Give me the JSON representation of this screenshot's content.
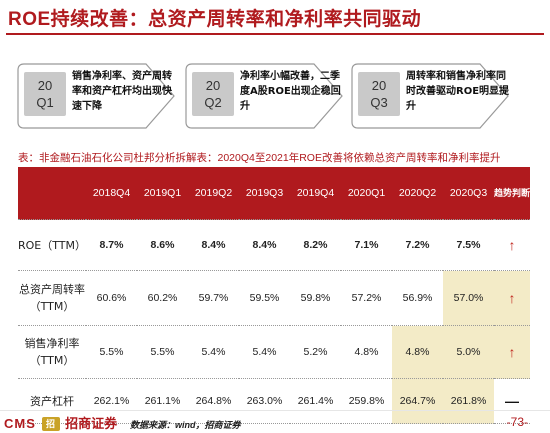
{
  "title": "ROE持续改善：总资产周转率和净利率共同驱动",
  "steps": [
    {
      "period": "20",
      "quarter": "Q1",
      "text": "销售净利率、资产周转率和资产杠杆均出现快速下降"
    },
    {
      "period": "20",
      "quarter": "Q2",
      "text": "净利率小幅改善，二季度A股ROE出现企稳回升"
    },
    {
      "period": "20",
      "quarter": "Q3",
      "text": "周转率和销售净利率同时改善驱动ROE明显提升"
    }
  ],
  "caption": "表：非金融石油石化公司杜邦分析拆解表：2020Q4至2021年ROE改善将依赖总资产周转率和净利率提升",
  "table": {
    "columns": [
      "2018Q4",
      "2019Q1",
      "2019Q2",
      "2019Q3",
      "2019Q4",
      "2020Q1",
      "2020Q2",
      "2020Q3"
    ],
    "trend_header": "趋势判断",
    "rows": [
      {
        "label": "ROE（TTM）",
        "values": [
          "8.7%",
          "8.6%",
          "8.4%",
          "8.4%",
          "8.2%",
          "7.1%",
          "7.2%",
          "7.5%"
        ],
        "trend": "↑"
      },
      {
        "label": "总资产周转率（TTM）",
        "values": [
          "60.6%",
          "60.2%",
          "59.7%",
          "59.5%",
          "59.8%",
          "57.2%",
          "56.9%",
          "57.0%"
        ],
        "trend": "↑"
      },
      {
        "label": "销售净利率（TTM）",
        "values": [
          "5.5%",
          "5.5%",
          "5.4%",
          "5.4%",
          "5.2%",
          "4.8%",
          "4.8%",
          "5.0%"
        ],
        "trend": "↑"
      },
      {
        "label": "资产杠杆",
        "values": [
          "262.1%",
          "261.1%",
          "264.8%",
          "263.0%",
          "261.4%",
          "259.8%",
          "264.7%",
          "261.8%"
        ],
        "trend": "—"
      }
    ]
  },
  "footer": {
    "logo_latin": "CMS",
    "logo_mark": "招",
    "logo_cn": "招商证券",
    "source": "数据来源：wind，招商证券",
    "page": "-73-"
  },
  "colors": {
    "brand": "#b01a1e",
    "highlight": "#f3ebc7",
    "badge": "#c9c9c9"
  }
}
